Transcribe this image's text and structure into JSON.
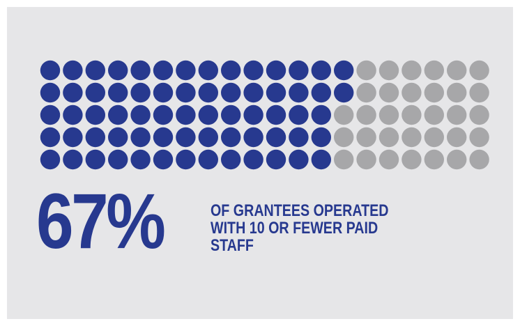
{
  "colors": {
    "accent": "#27398f",
    "inactive": "#a7a7a9",
    "panel": "#e6e6e8"
  },
  "chart_data": {
    "type": "waffle",
    "percent": 67,
    "total_dots": 100,
    "filled_dots": 67,
    "rows": 5,
    "columns": 20,
    "fill_order": "column-major, top-to-bottom, left-to-right",
    "stat_label": "67%",
    "caption_lines": [
      "OF GRANTEES OPERATED",
      "WITH 10 OR FEWER PAID",
      "STAFF"
    ]
  }
}
